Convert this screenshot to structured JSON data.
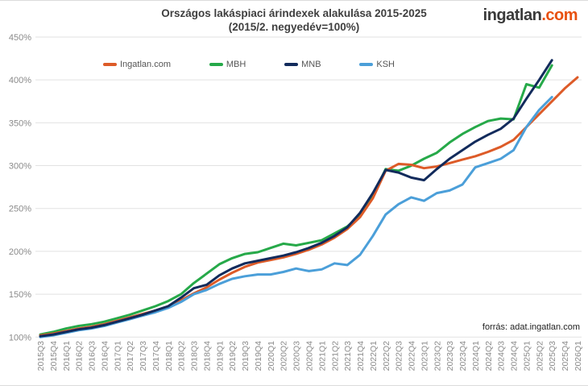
{
  "logo": {
    "part1": "ingatlan",
    "part2": ".com"
  },
  "source_note": "forrás: adat.ingatlan.com",
  "colors": {
    "accent_orange": "#dd5b28",
    "green": "#26a949",
    "navy": "#122b5c",
    "light_blue": "#4b9fd9",
    "grid": "#e2e2e2",
    "axis_label": "#8a8a8a",
    "title": "#3f3f3f",
    "logo_gray": "#3a3a3a",
    "logo_orange": "#e8500f"
  },
  "chart_data": {
    "type": "line",
    "title": "Országos lakáspiaci árindexek alakulása 2015-2025",
    "subtitle": "(2015/2. negyedév=100%)",
    "xlabel": "",
    "ylabel": "",
    "ylim": [
      100,
      450
    ],
    "grid": true,
    "legend_position": "top",
    "y_ticks": [
      {
        "label": "100%",
        "value": 100
      },
      {
        "label": "150%",
        "value": 150
      },
      {
        "label": "200%",
        "value": 200
      },
      {
        "label": "250%",
        "value": 250
      },
      {
        "label": "300%",
        "value": 300
      },
      {
        "label": "350%",
        "value": 350
      },
      {
        "label": "400%",
        "value": 400
      },
      {
        "label": "450%",
        "value": 450
      }
    ],
    "categories": [
      "2015Q3",
      "2015Q4",
      "2016Q1",
      "2016Q2",
      "2016Q3",
      "2016Q4",
      "2017Q1",
      "2017Q2",
      "2017Q3",
      "2017Q4",
      "2018Q1",
      "2018Q2",
      "2018Q3",
      "2018Q4",
      "2019Q1",
      "2019Q2",
      "2019Q3",
      "2019Q4",
      "2020Q1",
      "2020Q2",
      "2020Q3",
      "2020Q4",
      "2021Q1",
      "2021Q2",
      "2021Q3",
      "2021Q4",
      "2022Q1",
      "2022Q2",
      "2022Q3",
      "2022Q4",
      "2023Q1",
      "2023Q2",
      "2023Q3",
      "2023Q4",
      "2024Q1",
      "2024Q2",
      "2024Q3",
      "2024Q4",
      "2025Q1",
      "2025Q2",
      "2025Q3",
      "2025Q4",
      "2026Q1"
    ],
    "series": [
      {
        "name": "Ingatlan.com",
        "color": "#dd5b28",
        "values": [
          102,
          104,
          107,
          110,
          112,
          115,
          119,
          123,
          127,
          131,
          136,
          143,
          151,
          158,
          167,
          175,
          182,
          187,
          190,
          193,
          197,
          202,
          208,
          216,
          226,
          240,
          262,
          294,
          302,
          301,
          297,
          299,
          303,
          307,
          311,
          316,
          322,
          330,
          345,
          360,
          375,
          390,
          403
        ]
      },
      {
        "name": "MBH",
        "color": "#26a949",
        "values": [
          103,
          106,
          110,
          113,
          115,
          118,
          122,
          126,
          131,
          136,
          142,
          150,
          163,
          174,
          185,
          192,
          197,
          199,
          204,
          209,
          207,
          210,
          213,
          221,
          229,
          242,
          265,
          296,
          294,
          300,
          308,
          315,
          327,
          337,
          345,
          352,
          355,
          354,
          395,
          391,
          417,
          null,
          null
        ]
      },
      {
        "name": "MNB",
        "color": "#122b5c",
        "values": [
          101,
          103,
          106,
          109,
          111,
          114,
          118,
          122,
          126,
          131,
          136,
          146,
          157,
          161,
          172,
          180,
          186,
          189,
          192,
          195,
          199,
          204,
          210,
          218,
          228,
          245,
          268,
          295,
          292,
          286,
          283,
          296,
          308,
          318,
          328,
          336,
          343,
          355,
          378,
          400,
          423,
          null,
          null
        ]
      },
      {
        "name": "KSH",
        "color": "#4b9fd9",
        "values": [
          100,
          102,
          105,
          108,
          110,
          113,
          117,
          121,
          125,
          129,
          134,
          141,
          150,
          155,
          162,
          168,
          171,
          173,
          173,
          176,
          180,
          177,
          179,
          186,
          184,
          196,
          218,
          243,
          255,
          263,
          259,
          268,
          271,
          278,
          298,
          303,
          308,
          318,
          345,
          365,
          380,
          null,
          null
        ]
      }
    ]
  }
}
